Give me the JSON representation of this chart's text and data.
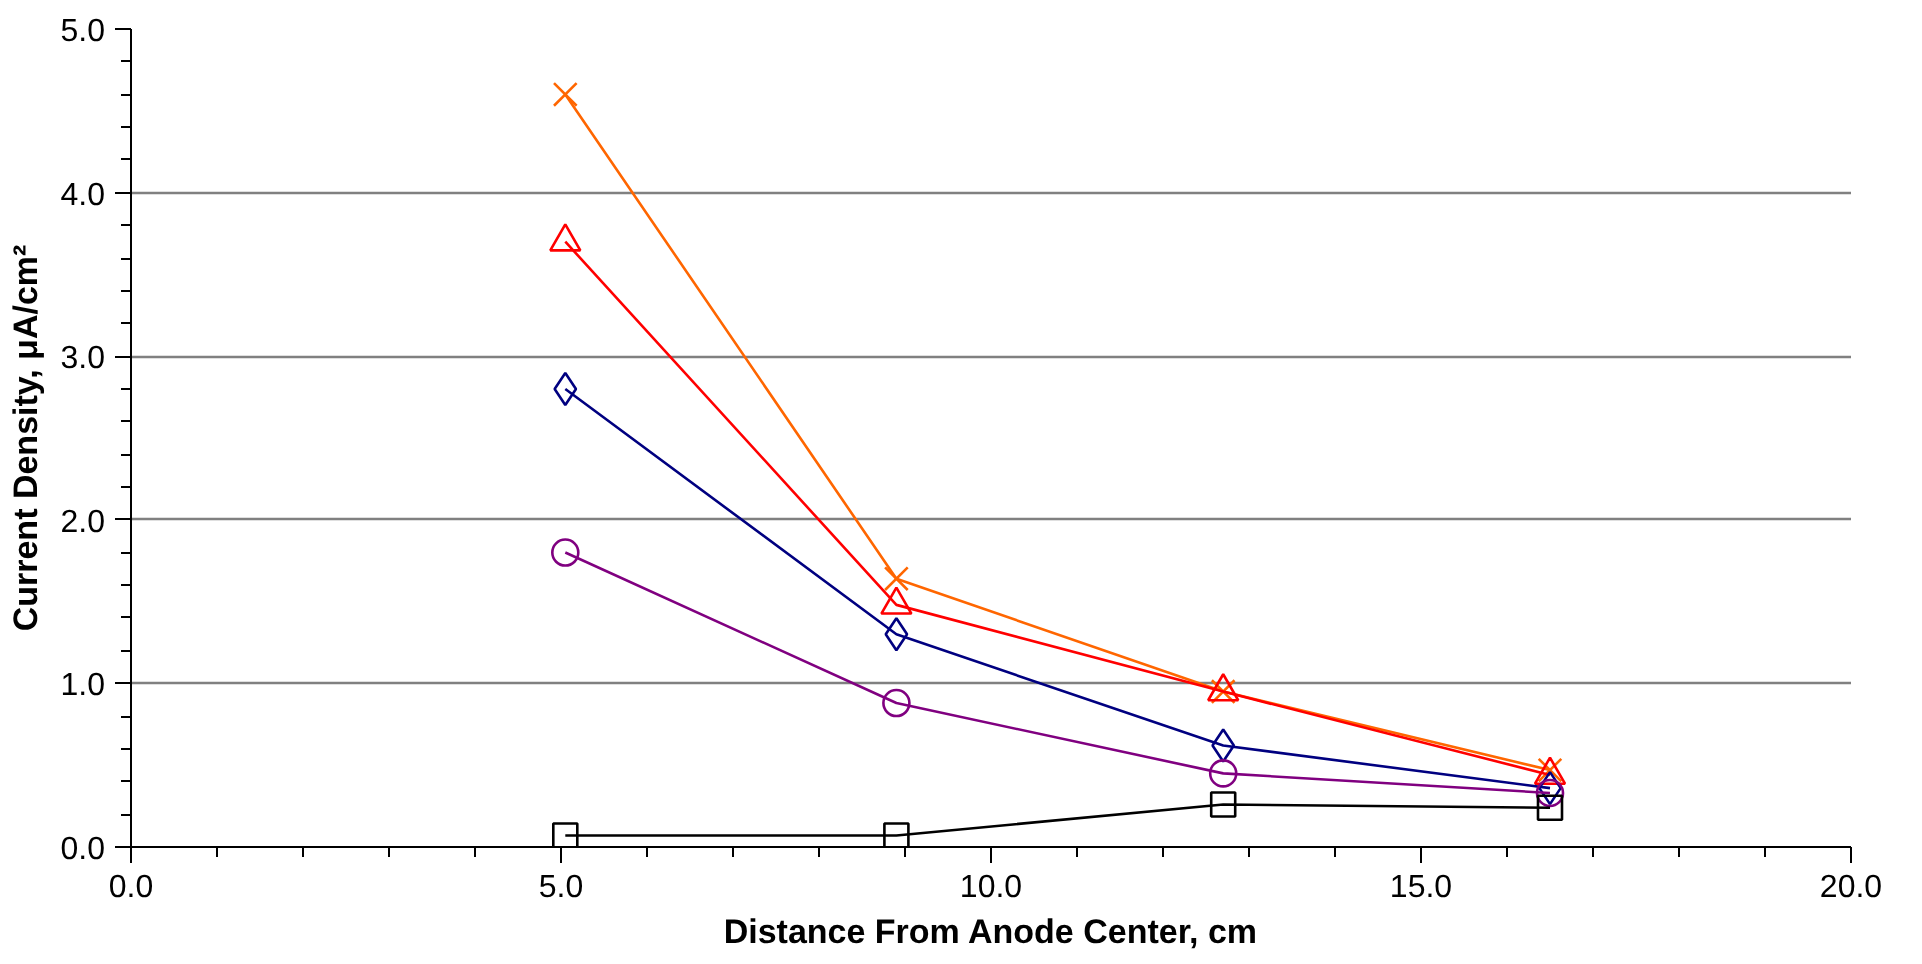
{
  "chart_data": {
    "type": "line",
    "xlabel": "Distance From Anode Center, cm",
    "ylabel": "Current Density, μA/cm²",
    "x": [
      5.05,
      8.9,
      12.7,
      16.5
    ],
    "series": [
      {
        "color": "#ff6600",
        "marker": "cross",
        "values": [
          4.6,
          1.64,
          0.95,
          0.47
        ]
      },
      {
        "color": "#ff0000",
        "marker": "triangle",
        "values": [
          3.7,
          1.48,
          0.95,
          0.44
        ]
      },
      {
        "color": "#000080",
        "marker": "diamond",
        "values": [
          2.8,
          1.3,
          0.62,
          0.36
        ]
      },
      {
        "color": "#800080",
        "marker": "circle",
        "values": [
          1.8,
          0.88,
          0.45,
          0.33
        ]
      },
      {
        "color": "#000000",
        "marker": "square",
        "values": [
          0.07,
          0.07,
          0.26,
          0.24
        ]
      }
    ],
    "xlim": [
      0,
      20
    ],
    "ylim": [
      0,
      5
    ],
    "xticks": [
      {
        "value": 0,
        "label": "0.0"
      },
      {
        "value": 5,
        "label": "5.0"
      },
      {
        "value": 10,
        "label": "10.0"
      },
      {
        "value": 15,
        "label": "15.0"
      },
      {
        "value": 20,
        "label": "20.0"
      }
    ],
    "yticks": [
      {
        "value": 0,
        "label": "0.0"
      },
      {
        "value": 1,
        "label": "1.0"
      },
      {
        "value": 2,
        "label": "2.0"
      },
      {
        "value": 3,
        "label": "3.0"
      },
      {
        "value": 4,
        "label": "4.0"
      },
      {
        "value": 5,
        "label": "5.0"
      }
    ],
    "grid": "y",
    "line_style": "solid"
  }
}
